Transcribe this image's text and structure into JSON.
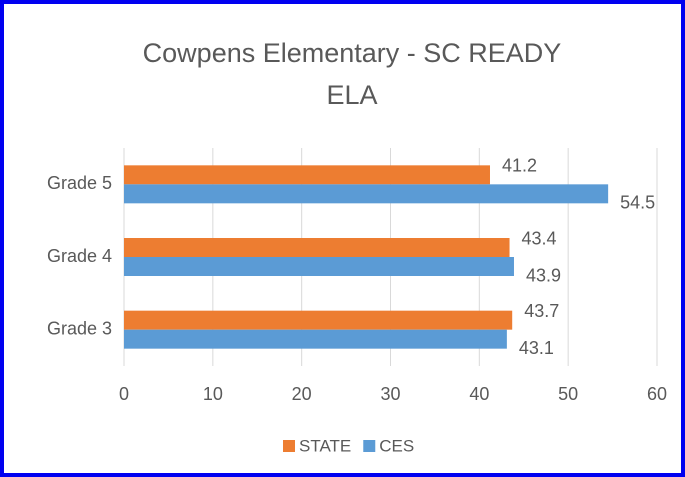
{
  "chart_data": {
    "type": "hbar",
    "title": [
      "Cowpens Elementary - SC READY",
      "ELA"
    ],
    "categories": [
      "Grade 5",
      "Grade 4",
      "Grade 3"
    ],
    "series": [
      {
        "name": "STATE",
        "color": "#ED7D31",
        "values": [
          41.2,
          43.4,
          43.7
        ]
      },
      {
        "name": "CES",
        "color": "#5B9BD5",
        "values": [
          54.5,
          43.9,
          43.1
        ]
      }
    ],
    "xlim": [
      0,
      60
    ],
    "xticks": [
      0,
      10,
      20,
      30,
      40,
      50,
      60
    ],
    "grid": true,
    "legend": "bottom"
  }
}
